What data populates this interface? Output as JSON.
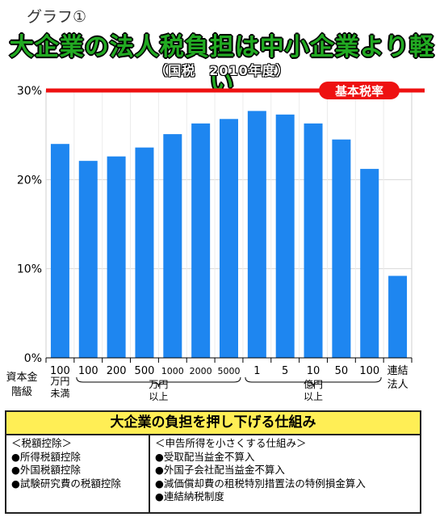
{
  "caption": "グラフ①",
  "title": "大企業の法人税負担は中小企業より軽い",
  "subtitle": "（国税　2010年度）",
  "colors": {
    "bar": "#1e86f0",
    "reference_line": "#ee1111",
    "reference_badge": "#ee1111",
    "title": "#22aa22",
    "box_header": "#ffee55",
    "grid": "#d8d8d8"
  },
  "chart_data": {
    "type": "bar",
    "title": "大企業の法人税負担は中小企業より軽い",
    "subtitle": "（国税　2010年度）",
    "xlabel": "資本金階級",
    "ylabel": "",
    "ylim": [
      0,
      30
    ],
    "yticks": [
      0,
      10,
      20,
      30
    ],
    "ytick_labels": [
      "0%",
      "10%",
      "20%",
      "30%"
    ],
    "grid": true,
    "categories": [
      "100",
      "100",
      "200",
      "500",
      "1000",
      "2000",
      "5000",
      "1",
      "5",
      "10",
      "50",
      "100",
      "連結法人"
    ],
    "values": [
      24.0,
      22.1,
      22.6,
      23.6,
      25.1,
      26.3,
      26.8,
      27.7,
      27.3,
      26.3,
      24.5,
      21.2,
      9.2
    ],
    "group_labels": [
      {
        "label": "万円未満",
        "from": 0,
        "to": 0
      },
      {
        "label": "万円以上",
        "from": 1,
        "to": 6
      },
      {
        "label": "億円以上",
        "from": 7,
        "to": 11
      }
    ],
    "x_axis_title": [
      "資本金",
      "階級"
    ],
    "reference_line": {
      "value": 30,
      "label": "基本税率"
    }
  },
  "box": {
    "title": "大企業の負担を押し下げる仕組み",
    "left": {
      "heading": "＜税額控除＞",
      "items": [
        "●所得税額控除",
        "●外国税額控除",
        "●試験研究費の税額控除"
      ]
    },
    "right": {
      "heading": "＜申告所得を小さくする仕組み＞",
      "items": [
        "●受取配当益金不算入",
        "●外国子会社配当益金不算入",
        "●減価償却費の租税特別措置法の特例損金算入",
        "●連結納税制度"
      ]
    }
  }
}
